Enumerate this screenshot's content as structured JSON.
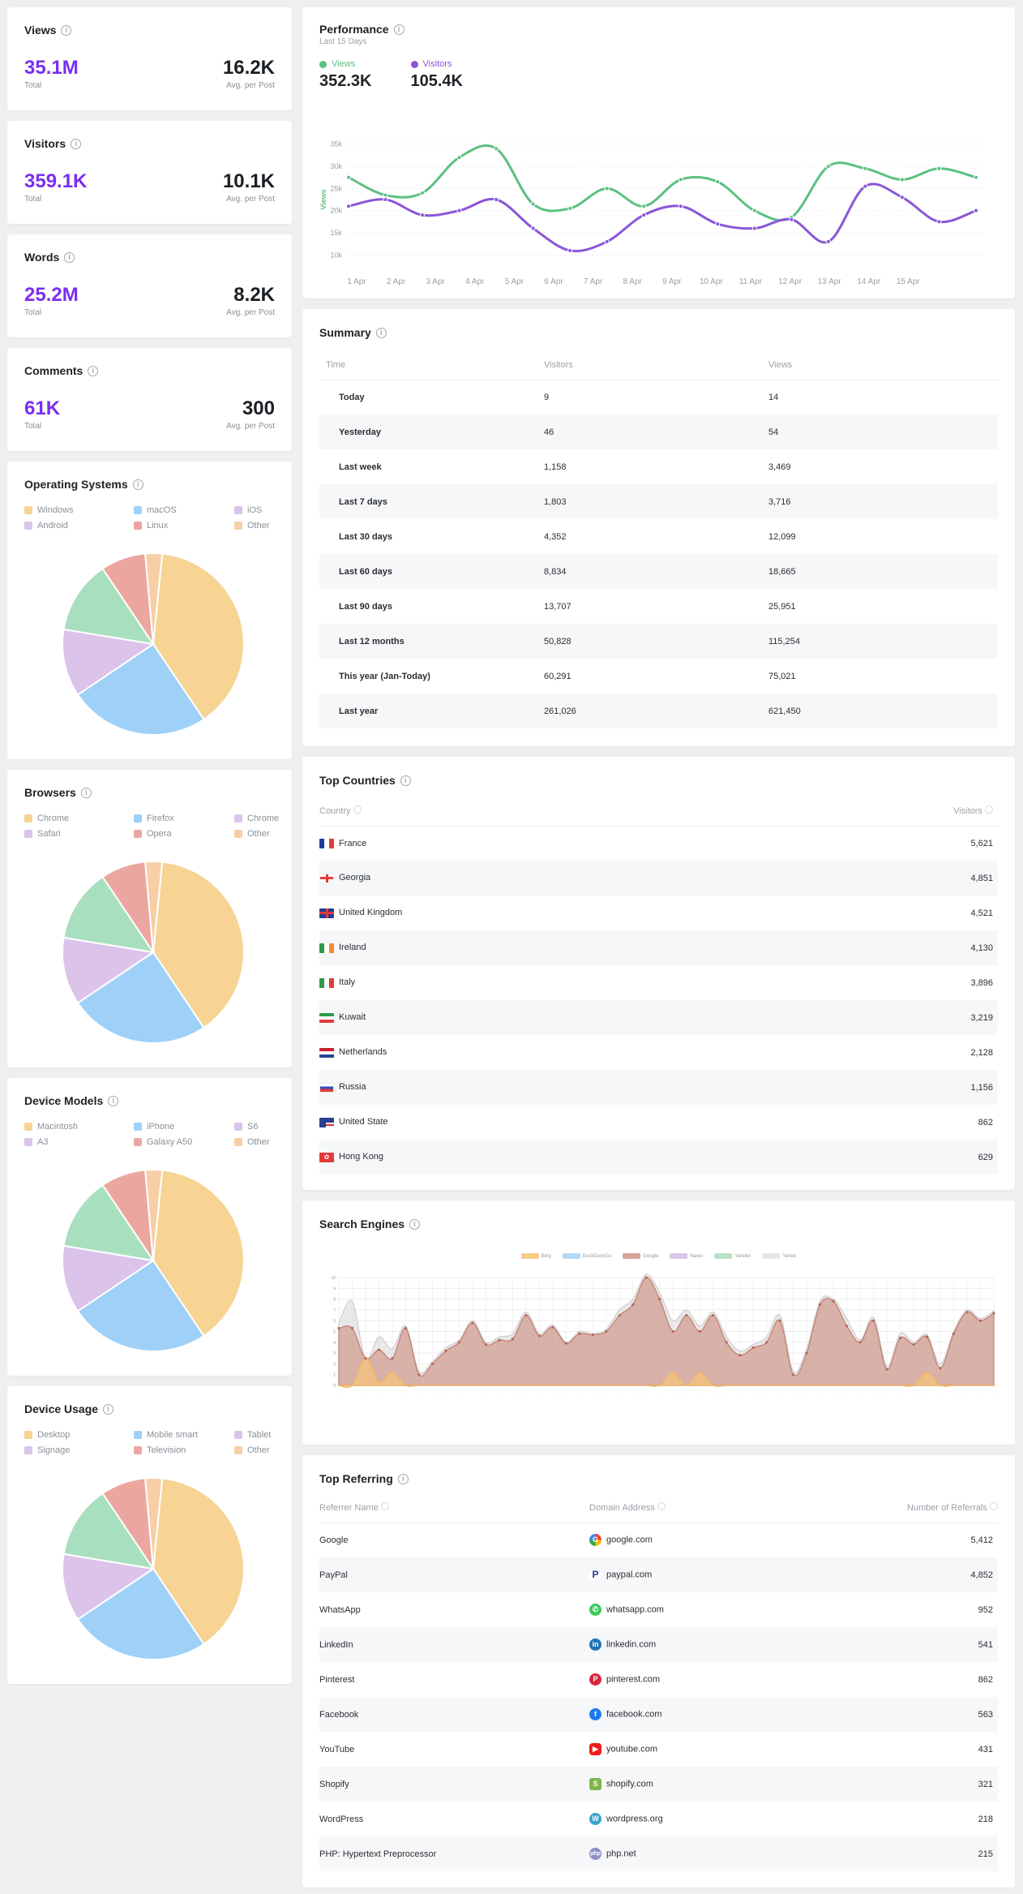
{
  "stats": [
    {
      "title": "Views",
      "total": "35.1M",
      "total_label": "Total",
      "avg": "16.2K",
      "avg_label": "Avg. per Post"
    },
    {
      "title": "Visitors",
      "total": "359.1K",
      "total_label": "Total",
      "avg": "10.1K",
      "avg_label": "Avg. per Post"
    },
    {
      "title": "Words",
      "total": "25.2M",
      "total_label": "Total",
      "avg": "8.2K",
      "avg_label": "Avg. per Post"
    },
    {
      "title": "Comments",
      "total": "61K",
      "total_label": "Total",
      "avg": "300",
      "avg_label": "Avg. per Post"
    }
  ],
  "pies": [
    {
      "title": "Operating Systems",
      "legend": [
        "Windows",
        "macOS",
        "iOS",
        "Android",
        "Linux",
        "Other"
      ]
    },
    {
      "title": "Browsers",
      "legend": [
        "Chrome",
        "Firefox",
        "Chrome",
        "Safari",
        "Opera",
        "Other"
      ]
    },
    {
      "title": "Device Models",
      "legend": [
        "Macintosh",
        "iPhone",
        "S6",
        "A3",
        "Galaxy A50",
        "Other"
      ]
    },
    {
      "title": "Device Usage",
      "legend": [
        "Desktop",
        "Mobile smart",
        "Tablet",
        "Signage",
        "Television",
        "Other"
      ]
    }
  ],
  "pie_colors": [
    "#f7d394",
    "#9fd0f7",
    "#dcc3ea",
    "#a8e0bf",
    "#eba79f",
    "#f6cfa6"
  ],
  "pie_values": [
    0.39,
    0.25,
    0.12,
    0.13,
    0.08,
    0.03
  ],
  "performance": {
    "title": "Performance",
    "subtitle": "Last 15 Days",
    "views_label": "Views",
    "views_total": "352.3K",
    "visitors_label": "Visitors",
    "visitors_total": "105.4K",
    "ylabel": "Views",
    "views_color": "#5cc081",
    "visitors_color": "#8a56d8"
  },
  "summary": {
    "title": "Summary",
    "headers": [
      "Time",
      "Visitors",
      "Views"
    ],
    "rows": [
      [
        "Today",
        "9",
        "14"
      ],
      [
        "Yesterday",
        "46",
        "54"
      ],
      [
        "Last week",
        "1,158",
        "3,469"
      ],
      [
        "Last 7 days",
        "1,803",
        "3,716"
      ],
      [
        "Last 30 days",
        "4,352",
        "12,099"
      ],
      [
        "Last 60 days",
        "8,834",
        "18,665"
      ],
      [
        "Last 90 days",
        "13,707",
        "25,951"
      ],
      [
        "Last 12 months",
        "50,828",
        "115,254"
      ],
      [
        "This year (Jan-Today)",
        "60,291",
        "75,021"
      ],
      [
        "Last year",
        "261,026",
        "621,450"
      ]
    ]
  },
  "countries": {
    "title": "Top Countries",
    "col_country": "Country",
    "col_visitors": "Visitors",
    "rows": [
      {
        "name": "France",
        "value": "5,621"
      },
      {
        "name": "Georgia",
        "value": "4,851"
      },
      {
        "name": "United Kingdom",
        "value": "4,521"
      },
      {
        "name": "Ireland",
        "value": "4,130"
      },
      {
        "name": "Italy",
        "value": "3,896"
      },
      {
        "name": "Kuwait",
        "value": "3,219"
      },
      {
        "name": "Netherlands",
        "value": "2,128"
      },
      {
        "name": "Russia",
        "value": "1,156"
      },
      {
        "name": "United State",
        "value": "862"
      },
      {
        "name": "Hong Kong",
        "value": "629"
      }
    ]
  },
  "search_engines": {
    "title": "Search Engines",
    "legend": [
      "Bing",
      "DuckDuckGo",
      "Google",
      "Naver",
      "Yandex",
      "Yahoo"
    ],
    "colors": [
      "#f7cc86",
      "#b5daf7",
      "#d9a296",
      "#dcc7ea",
      "#b7e3c4",
      "#e6e6e6"
    ]
  },
  "referring": {
    "title": "Top Referring",
    "col_name": "Referrer Name",
    "col_domain": "Domain Address",
    "col_count": "Number of Referrals",
    "rows": [
      {
        "name": "Google",
        "domain": "google.com",
        "count": "5,412"
      },
      {
        "name": "PayPal",
        "domain": "paypal.com",
        "count": "4,852"
      },
      {
        "name": "WhatsApp",
        "domain": "whatsapp.com",
        "count": "952"
      },
      {
        "name": "LinkedIn",
        "domain": "linkedin.com",
        "count": "541"
      },
      {
        "name": "Pinterest",
        "domain": "pinterest.com",
        "count": "862"
      },
      {
        "name": "Facebook",
        "domain": "facebook.com",
        "count": "563"
      },
      {
        "name": "YouTube",
        "domain": "youtube.com",
        "count": "431"
      },
      {
        "name": "Shopify",
        "domain": "shopify.com",
        "count": "321"
      },
      {
        "name": "WordPress",
        "domain": "wordpress.org",
        "count": "218"
      },
      {
        "name": "PHP: Hypertext Preprocessor",
        "domain": "php.net",
        "count": "215"
      }
    ]
  }
}
